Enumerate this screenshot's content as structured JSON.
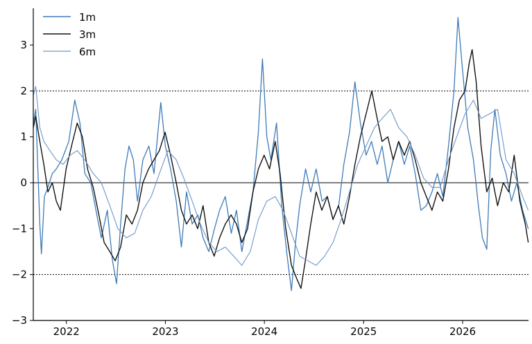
{
  "chart_data": {
    "type": "line",
    "title": "",
    "xlabel": "",
    "ylabel": "",
    "xlim": [
      "2021-09-01",
      "2026-09-01"
    ],
    "ylim": [
      -3,
      3.8
    ],
    "x_ticks": [
      {
        "value": "2022-01-01",
        "label": "2022"
      },
      {
        "value": "2023-01-01",
        "label": "2023"
      },
      {
        "value": "2024-01-01",
        "label": "2024"
      },
      {
        "value": "2025-01-01",
        "label": "2025"
      },
      {
        "value": "2026-01-01",
        "label": "2026"
      }
    ],
    "y_ticks": [
      {
        "value": -3,
        "label": "−3"
      },
      {
        "value": -2,
        "label": "−2"
      },
      {
        "value": -1,
        "label": "−1"
      },
      {
        "value": 0,
        "label": "0"
      },
      {
        "value": 1,
        "label": "1"
      },
      {
        "value": 2,
        "label": "2"
      },
      {
        "value": 3,
        "label": "3"
      }
    ],
    "reference_lines": [
      {
        "value": 2,
        "style": "dotted",
        "color": "#000000"
      },
      {
        "value": 0,
        "style": "solid",
        "color": "#000000"
      },
      {
        "value": -2,
        "style": "dotted",
        "color": "#000000"
      }
    ],
    "grid": false,
    "legend_position": "top-left",
    "series": [
      {
        "name": "1m",
        "color": "#3d7ab8",
        "width": 1.3,
        "points": [
          [
            "2021-09-01",
            1.3
          ],
          [
            "2021-09-10",
            1.6
          ],
          [
            "2021-09-25",
            -0.9
          ],
          [
            "2021-10-01",
            -1.55
          ],
          [
            "2021-10-12",
            -0.3
          ],
          [
            "2021-10-25",
            -0.1
          ],
          [
            "2021-11-10",
            0.2
          ],
          [
            "2021-11-25",
            0.3
          ],
          [
            "2021-12-15",
            0.5
          ],
          [
            "2022-01-10",
            0.9
          ],
          [
            "2022-02-01",
            1.8
          ],
          [
            "2022-02-20",
            1.3
          ],
          [
            "2022-03-10",
            0.2
          ],
          [
            "2022-04-01",
            0.0
          ],
          [
            "2022-04-20",
            -0.6
          ],
          [
            "2022-05-10",
            -1.2
          ],
          [
            "2022-06-01",
            -0.6
          ],
          [
            "2022-06-20",
            -1.7
          ],
          [
            "2022-07-05",
            -2.2
          ],
          [
            "2022-07-20",
            -0.9
          ],
          [
            "2022-08-05",
            0.3
          ],
          [
            "2022-08-20",
            0.8
          ],
          [
            "2022-09-05",
            0.5
          ],
          [
            "2022-09-20",
            -0.4
          ],
          [
            "2022-10-10",
            0.5
          ],
          [
            "2022-11-01",
            0.8
          ],
          [
            "2022-11-20",
            0.2
          ],
          [
            "2022-12-15",
            1.75
          ],
          [
            "2023-01-01",
            0.8
          ],
          [
            "2023-01-20",
            0.3
          ],
          [
            "2023-02-10",
            -0.4
          ],
          [
            "2023-03-01",
            -1.4
          ],
          [
            "2023-03-20",
            -0.2
          ],
          [
            "2023-04-10",
            -0.9
          ],
          [
            "2023-05-01",
            -0.7
          ],
          [
            "2023-05-20",
            -1.2
          ],
          [
            "2023-06-10",
            -1.5
          ],
          [
            "2023-07-01",
            -1.0
          ],
          [
            "2023-07-20",
            -0.6
          ],
          [
            "2023-08-10",
            -0.3
          ],
          [
            "2023-09-01",
            -1.1
          ],
          [
            "2023-09-20",
            -0.6
          ],
          [
            "2023-10-10",
            -1.5
          ],
          [
            "2023-11-01",
            -0.8
          ],
          [
            "2023-11-20",
            -0.2
          ],
          [
            "2023-12-10",
            1.1
          ],
          [
            "2023-12-25",
            2.7
          ],
          [
            "2024-01-10",
            1.0
          ],
          [
            "2024-01-25",
            0.5
          ],
          [
            "2024-02-15",
            1.3
          ],
          [
            "2024-03-05",
            -0.5
          ],
          [
            "2024-03-25",
            -1.6
          ],
          [
            "2024-04-10",
            -2.35
          ],
          [
            "2024-04-25",
            -1.3
          ],
          [
            "2024-05-10",
            -0.5
          ],
          [
            "2024-06-01",
            0.3
          ],
          [
            "2024-06-20",
            -0.2
          ],
          [
            "2024-07-10",
            0.3
          ],
          [
            "2024-08-01",
            -0.4
          ],
          [
            "2024-08-20",
            -0.3
          ],
          [
            "2024-09-10",
            -0.8
          ],
          [
            "2024-10-01",
            -0.5
          ],
          [
            "2024-10-20",
            0.4
          ],
          [
            "2024-11-10",
            1.1
          ],
          [
            "2024-11-30",
            2.2
          ],
          [
            "2024-12-20",
            1.3
          ],
          [
            "2025-01-10",
            0.6
          ],
          [
            "2025-01-30",
            0.9
          ],
          [
            "2025-02-20",
            0.4
          ],
          [
            "2025-03-10",
            0.8
          ],
          [
            "2025-03-31",
            0.0
          ],
          [
            "2025-04-20",
            0.5
          ],
          [
            "2025-05-10",
            0.9
          ],
          [
            "2025-05-31",
            0.4
          ],
          [
            "2025-06-20",
            0.8
          ],
          [
            "2025-07-10",
            0.2
          ],
          [
            "2025-07-31",
            -0.6
          ],
          [
            "2025-08-20",
            -0.5
          ],
          [
            "2025-09-10",
            -0.2
          ],
          [
            "2025-09-30",
            0.2
          ],
          [
            "2025-10-20",
            -0.3
          ],
          [
            "2025-11-10",
            0.8
          ],
          [
            "2025-11-30",
            2.0
          ],
          [
            "2025-12-15",
            3.6
          ],
          [
            "2025-12-31",
            2.5
          ],
          [
            "2026-01-20",
            1.2
          ],
          [
            "2026-02-10",
            0.5
          ],
          [
            "2026-02-28",
            -0.5
          ],
          [
            "2026-03-15",
            -1.2
          ],
          [
            "2026-03-31",
            -1.45
          ],
          [
            "2026-04-15",
            0.7
          ],
          [
            "2026-04-30",
            1.6
          ],
          [
            "2026-05-20",
            0.6
          ],
          [
            "2026-06-10",
            0.2
          ],
          [
            "2026-06-30",
            -0.4
          ],
          [
            "2026-07-20",
            0.0
          ],
          [
            "2026-08-10",
            -0.6
          ],
          [
            "2026-08-31",
            -1.0
          ]
        ]
      },
      {
        "name": "3m",
        "color": "#111111",
        "width": 1.4,
        "points": [
          [
            "2021-09-01",
            1.2
          ],
          [
            "2021-09-10",
            1.45
          ],
          [
            "2021-09-25",
            0.9
          ],
          [
            "2021-10-10",
            0.4
          ],
          [
            "2021-10-25",
            -0.2
          ],
          [
            "2021-11-10",
            0.0
          ],
          [
            "2021-11-25",
            -0.4
          ],
          [
            "2021-12-10",
            -0.6
          ],
          [
            "2021-12-31",
            0.3
          ],
          [
            "2022-01-20",
            0.8
          ],
          [
            "2022-02-10",
            1.3
          ],
          [
            "2022-03-01",
            1.0
          ],
          [
            "2022-03-20",
            0.3
          ],
          [
            "2022-04-10",
            -0.1
          ],
          [
            "2022-05-01",
            -0.7
          ],
          [
            "2022-05-20",
            -1.3
          ],
          [
            "2022-06-10",
            -1.5
          ],
          [
            "2022-06-30",
            -1.7
          ],
          [
            "2022-07-20",
            -1.4
          ],
          [
            "2022-08-10",
            -0.7
          ],
          [
            "2022-08-31",
            -0.9
          ],
          [
            "2022-09-20",
            -0.6
          ],
          [
            "2022-10-10",
            0.0
          ],
          [
            "2022-10-31",
            0.3
          ],
          [
            "2022-11-20",
            0.5
          ],
          [
            "2022-12-10",
            0.7
          ],
          [
            "2022-12-31",
            1.1
          ],
          [
            "2023-01-20",
            0.6
          ],
          [
            "2023-02-10",
            0.0
          ],
          [
            "2023-03-01",
            -0.6
          ],
          [
            "2023-03-20",
            -0.9
          ],
          [
            "2023-04-10",
            -0.7
          ],
          [
            "2023-04-30",
            -1.0
          ],
          [
            "2023-05-20",
            -0.5
          ],
          [
            "2023-06-10",
            -1.3
          ],
          [
            "2023-06-30",
            -1.6
          ],
          [
            "2023-07-20",
            -1.2
          ],
          [
            "2023-08-10",
            -0.9
          ],
          [
            "2023-08-31",
            -0.7
          ],
          [
            "2023-09-20",
            -0.9
          ],
          [
            "2023-10-10",
            -1.3
          ],
          [
            "2023-10-31",
            -1.0
          ],
          [
            "2023-11-20",
            -0.2
          ],
          [
            "2023-12-10",
            0.3
          ],
          [
            "2023-12-31",
            0.6
          ],
          [
            "2024-01-20",
            0.3
          ],
          [
            "2024-02-10",
            0.9
          ],
          [
            "2024-02-28",
            0.2
          ],
          [
            "2024-03-20",
            -1.0
          ],
          [
            "2024-04-10",
            -1.8
          ],
          [
            "2024-04-30",
            -2.1
          ],
          [
            "2024-05-15",
            -2.3
          ],
          [
            "2024-05-31",
            -1.7
          ],
          [
            "2024-06-20",
            -0.9
          ],
          [
            "2024-07-10",
            -0.2
          ],
          [
            "2024-07-31",
            -0.6
          ],
          [
            "2024-08-20",
            -0.3
          ],
          [
            "2024-09-10",
            -0.8
          ],
          [
            "2024-09-30",
            -0.5
          ],
          [
            "2024-10-20",
            -0.9
          ],
          [
            "2024-11-10",
            -0.3
          ],
          [
            "2024-11-30",
            0.4
          ],
          [
            "2024-12-20",
            1.0
          ],
          [
            "2025-01-10",
            1.5
          ],
          [
            "2025-01-31",
            2.0
          ],
          [
            "2025-02-20",
            1.4
          ],
          [
            "2025-03-10",
            0.9
          ],
          [
            "2025-03-31",
            1.0
          ],
          [
            "2025-04-20",
            0.5
          ],
          [
            "2025-05-10",
            0.9
          ],
          [
            "2025-05-31",
            0.6
          ],
          [
            "2025-06-20",
            0.9
          ],
          [
            "2025-07-10",
            0.5
          ],
          [
            "2025-07-31",
            0.0
          ],
          [
            "2025-08-20",
            -0.3
          ],
          [
            "2025-09-10",
            -0.6
          ],
          [
            "2025-09-30",
            -0.2
          ],
          [
            "2025-10-20",
            -0.4
          ],
          [
            "2025-11-10",
            0.3
          ],
          [
            "2025-11-30",
            1.2
          ],
          [
            "2025-12-20",
            1.8
          ],
          [
            "2026-01-10",
            2.0
          ],
          [
            "2026-01-25",
            2.6
          ],
          [
            "2026-02-05",
            2.9
          ],
          [
            "2026-02-20",
            2.2
          ],
          [
            "2026-03-10",
            0.8
          ],
          [
            "2026-03-31",
            -0.2
          ],
          [
            "2026-04-20",
            0.1
          ],
          [
            "2026-05-10",
            -0.5
          ],
          [
            "2026-05-31",
            0.0
          ],
          [
            "2026-06-20",
            -0.2
          ],
          [
            "2026-07-10",
            0.6
          ],
          [
            "2026-07-31",
            -0.4
          ],
          [
            "2026-08-20",
            -0.9
          ],
          [
            "2026-08-31",
            -1.3
          ]
        ]
      },
      {
        "name": "6m",
        "color": "#6e96c6",
        "width": 1.1,
        "points": [
          [
            "2021-09-01",
            1.9
          ],
          [
            "2021-09-10",
            2.1
          ],
          [
            "2021-09-25",
            1.2
          ],
          [
            "2021-10-10",
            0.9
          ],
          [
            "2021-11-01",
            0.7
          ],
          [
            "2021-11-25",
            0.5
          ],
          [
            "2021-12-20",
            0.4
          ],
          [
            "2022-01-15",
            0.6
          ],
          [
            "2022-02-10",
            0.7
          ],
          [
            "2022-03-10",
            0.5
          ],
          [
            "2022-04-10",
            0.2
          ],
          [
            "2022-05-10",
            0.0
          ],
          [
            "2022-06-10",
            -0.5
          ],
          [
            "2022-07-10",
            -1.0
          ],
          [
            "2022-08-10",
            -1.2
          ],
          [
            "2022-09-10",
            -1.1
          ],
          [
            "2022-10-10",
            -0.6
          ],
          [
            "2022-11-10",
            -0.3
          ],
          [
            "2022-12-10",
            0.2
          ],
          [
            "2023-01-10",
            0.7
          ],
          [
            "2023-02-10",
            0.5
          ],
          [
            "2023-03-10",
            0.1
          ],
          [
            "2023-04-10",
            -0.4
          ],
          [
            "2023-05-10",
            -0.9
          ],
          [
            "2023-06-10",
            -1.3
          ],
          [
            "2023-07-10",
            -1.5
          ],
          [
            "2023-08-10",
            -1.4
          ],
          [
            "2023-09-10",
            -1.6
          ],
          [
            "2023-10-10",
            -1.8
          ],
          [
            "2023-11-10",
            -1.5
          ],
          [
            "2023-12-10",
            -0.8
          ],
          [
            "2024-01-10",
            -0.4
          ],
          [
            "2024-02-10",
            -0.3
          ],
          [
            "2024-03-10",
            -0.6
          ],
          [
            "2024-04-10",
            -1.1
          ],
          [
            "2024-05-10",
            -1.6
          ],
          [
            "2024-06-10",
            -1.7
          ],
          [
            "2024-07-10",
            -1.8
          ],
          [
            "2024-08-10",
            -1.6
          ],
          [
            "2024-09-10",
            -1.3
          ],
          [
            "2024-10-10",
            -0.8
          ],
          [
            "2024-11-10",
            -0.2
          ],
          [
            "2024-12-10",
            0.4
          ],
          [
            "2025-01-10",
            0.8
          ],
          [
            "2025-02-10",
            1.2
          ],
          [
            "2025-03-10",
            1.4
          ],
          [
            "2025-04-10",
            1.6
          ],
          [
            "2025-05-10",
            1.2
          ],
          [
            "2025-06-10",
            1.0
          ],
          [
            "2025-07-10",
            0.6
          ],
          [
            "2025-08-10",
            0.1
          ],
          [
            "2025-09-10",
            -0.1
          ],
          [
            "2025-10-10",
            -0.1
          ],
          [
            "2025-11-10",
            0.5
          ],
          [
            "2025-12-10",
            1.0
          ],
          [
            "2026-01-10",
            1.5
          ],
          [
            "2026-02-10",
            1.8
          ],
          [
            "2026-03-10",
            1.4
          ],
          [
            "2026-04-10",
            1.5
          ],
          [
            "2026-05-10",
            1.6
          ],
          [
            "2026-06-10",
            0.5
          ],
          [
            "2026-07-10",
            0.2
          ],
          [
            "2026-08-10",
            -0.3
          ],
          [
            "2026-08-31",
            -0.6
          ]
        ]
      }
    ]
  }
}
